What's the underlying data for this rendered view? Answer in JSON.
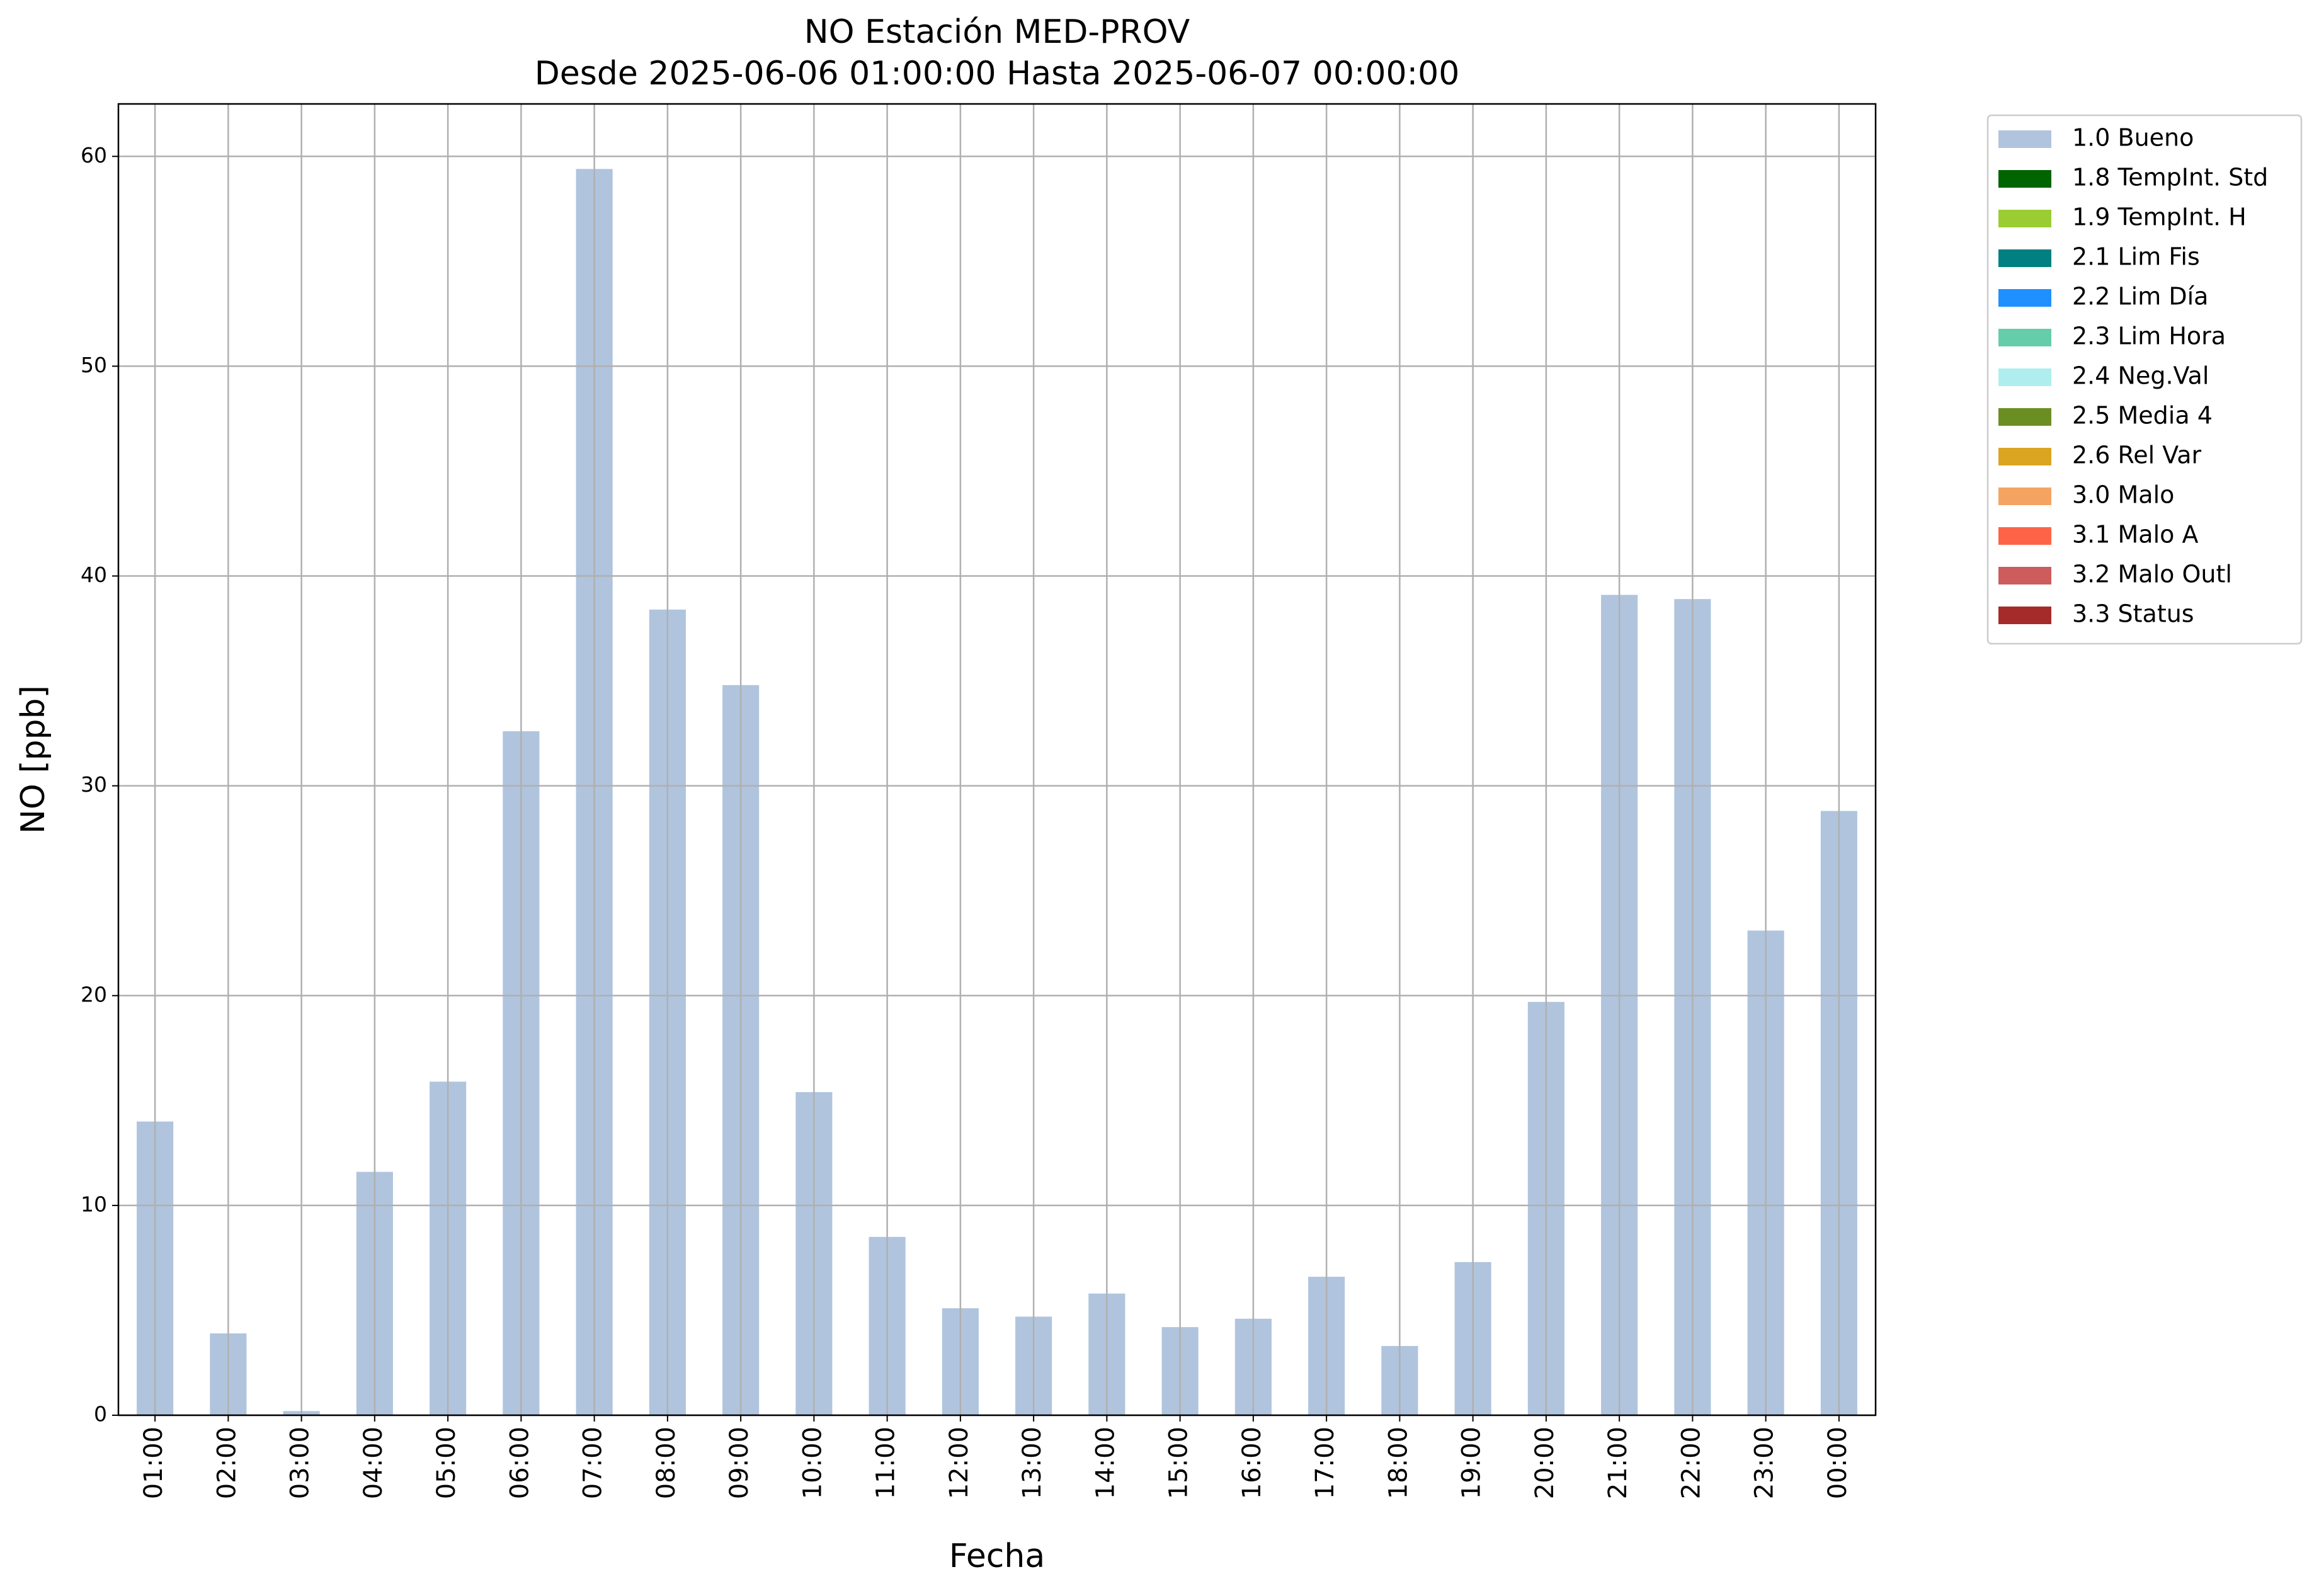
{
  "chart_data": {
    "type": "bar",
    "title": "NO Estación MED-PROV",
    "subtitle": "Desde 2025-06-06 01:00:00 Hasta 2025-06-07 00:00:00",
    "x_label": "Fecha",
    "y_label": "NO [ppb]",
    "categories": [
      "01:00",
      "02:00",
      "03:00",
      "04:00",
      "05:00",
      "06:00",
      "07:00",
      "08:00",
      "09:00",
      "10:00",
      "11:00",
      "12:00",
      "13:00",
      "14:00",
      "15:00",
      "16:00",
      "17:00",
      "18:00",
      "19:00",
      "20:00",
      "21:00",
      "22:00",
      "23:00",
      "00:00"
    ],
    "series": [
      {
        "name": "1.0 Bueno",
        "color": "#b0c4de",
        "values": [
          14.0,
          3.9,
          0.2,
          11.6,
          15.9,
          32.6,
          59.4,
          38.4,
          34.8,
          15.4,
          8.5,
          5.1,
          4.7,
          5.8,
          4.2,
          4.6,
          6.6,
          3.3,
          7.3,
          19.7,
          39.1,
          38.9,
          23.1,
          28.8
        ]
      },
      {
        "name": "1.8 TempInt. Std",
        "color": "#006400",
        "values": [
          null,
          null,
          null,
          null,
          null,
          null,
          null,
          null,
          null,
          null,
          null,
          null,
          null,
          null,
          null,
          null,
          null,
          null,
          null,
          null,
          null,
          null,
          null,
          null
        ]
      },
      {
        "name": "1.9 TempInt. H",
        "color": "#9acd32",
        "values": [
          null,
          null,
          null,
          null,
          null,
          null,
          null,
          null,
          null,
          null,
          null,
          null,
          null,
          null,
          null,
          null,
          null,
          null,
          null,
          null,
          null,
          null,
          null,
          null
        ]
      },
      {
        "name": "2.1 Lim Fis",
        "color": "#008080",
        "values": [
          null,
          null,
          null,
          null,
          null,
          null,
          null,
          null,
          null,
          null,
          null,
          null,
          null,
          null,
          null,
          null,
          null,
          null,
          null,
          null,
          null,
          null,
          null,
          null
        ]
      },
      {
        "name": "2.2 Lim Día",
        "color": "#1e90ff",
        "values": [
          null,
          null,
          null,
          null,
          null,
          null,
          null,
          null,
          null,
          null,
          null,
          null,
          null,
          null,
          null,
          null,
          null,
          null,
          null,
          null,
          null,
          null,
          null,
          null
        ]
      },
      {
        "name": "2.3 Lim Hora",
        "color": "#66cdaa",
        "values": [
          null,
          null,
          null,
          null,
          null,
          null,
          null,
          null,
          null,
          null,
          null,
          null,
          null,
          null,
          null,
          null,
          null,
          null,
          null,
          null,
          null,
          null,
          null,
          null
        ]
      },
      {
        "name": "2.4 Neg.Val",
        "color": "#afeeee",
        "values": [
          null,
          null,
          null,
          null,
          null,
          null,
          null,
          null,
          null,
          null,
          null,
          null,
          null,
          null,
          null,
          null,
          null,
          null,
          null,
          null,
          null,
          null,
          null,
          null
        ]
      },
      {
        "name": "2.5 Media 4",
        "color": "#6b8e23",
        "values": [
          null,
          null,
          null,
          null,
          null,
          null,
          null,
          null,
          null,
          null,
          null,
          null,
          null,
          null,
          null,
          null,
          null,
          null,
          null,
          null,
          null,
          null,
          null,
          null
        ]
      },
      {
        "name": "2.6 Rel Var",
        "color": "#daa520",
        "values": [
          null,
          null,
          null,
          null,
          null,
          null,
          null,
          null,
          null,
          null,
          null,
          null,
          null,
          null,
          null,
          null,
          null,
          null,
          null,
          null,
          null,
          null,
          null,
          null
        ]
      },
      {
        "name": "3.0 Malo",
        "color": "#f4a460",
        "values": [
          null,
          null,
          null,
          null,
          null,
          null,
          null,
          null,
          null,
          null,
          null,
          null,
          null,
          null,
          null,
          null,
          null,
          null,
          null,
          null,
          null,
          null,
          null,
          null
        ]
      },
      {
        "name": "3.1 Malo A",
        "color": "#ff6347",
        "values": [
          null,
          null,
          null,
          null,
          null,
          null,
          null,
          null,
          null,
          null,
          null,
          null,
          null,
          null,
          null,
          null,
          null,
          null,
          null,
          null,
          null,
          null,
          null,
          null
        ]
      },
      {
        "name": "3.2 Malo Outl",
        "color": "#cd5c5c",
        "values": [
          null,
          null,
          null,
          null,
          null,
          null,
          null,
          null,
          null,
          null,
          null,
          null,
          null,
          null,
          null,
          null,
          null,
          null,
          null,
          null,
          null,
          null,
          null,
          null
        ]
      },
      {
        "name": "3.3 Status",
        "color": "#a52a2a",
        "values": [
          null,
          null,
          null,
          null,
          null,
          null,
          null,
          null,
          null,
          null,
          null,
          null,
          null,
          null,
          null,
          null,
          null,
          null,
          null,
          null,
          null,
          null,
          null,
          null
        ]
      }
    ],
    "stacked": true,
    "ylim": [
      0,
      62.5
    ],
    "yticks": [
      0,
      10,
      20,
      30,
      40,
      50,
      60
    ],
    "grid": true,
    "legend": "outside-right"
  }
}
